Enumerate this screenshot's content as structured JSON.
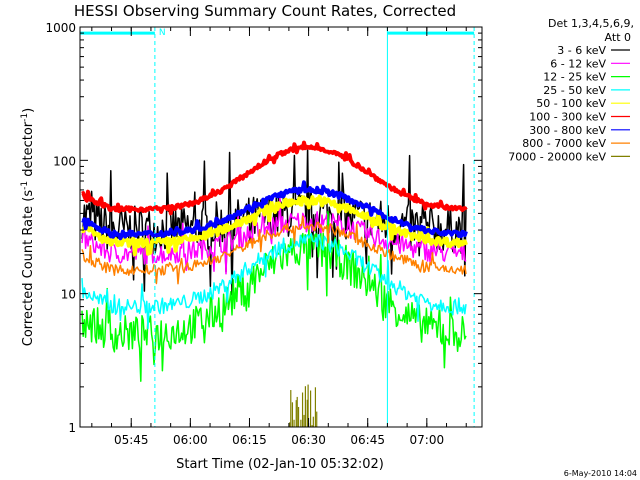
{
  "chart_data": {
    "type": "line",
    "title": "HESSI Observing Summary Count Rates, Corrected",
    "xlabel": "Start Time (02-Jan-10 05:32:02)",
    "ylabel_main": "Corrected Count Rate (s",
    "ylabel_sup1": "-1",
    "ylabel_mid": " detector",
    "ylabel_sup2": "-1",
    "ylabel_end": ")",
    "yscale": "log",
    "ylim": [
      1,
      1000
    ],
    "xlim": [
      "05:32",
      "07:14"
    ],
    "xticks": [
      "05:45",
      "06:00",
      "06:15",
      "06:30",
      "06:45",
      "07:00"
    ],
    "yticks": [
      "1",
      "10",
      "100",
      "1000"
    ],
    "legend_header": [
      "Det 1,3,4,5,6,9,",
      "Att 0"
    ],
    "legend_position": "right",
    "footer_date": "6-May-2010 14:04",
    "night_intervals": [
      {
        "start": "05:32",
        "end": "05:51",
        "flag": "N"
      },
      {
        "start": "06:50",
        "end": "07:12",
        "flag": ""
      }
    ],
    "attenuator_level": 900,
    "series": [
      {
        "name": "3 - 6 keV",
        "color": "#000000",
        "minimum": 30,
        "peak": 40,
        "noise": 0.18
      },
      {
        "name": "6 - 12 keV",
        "color": "#ff00ff",
        "minimum": 20,
        "peak": 35,
        "noise": 0.08
      },
      {
        "name": "12 - 25 keV",
        "color": "#00ff00",
        "minimum": 5,
        "peak": 22,
        "noise": 0.14
      },
      {
        "name": "25 - 50 keV",
        "color": "#00ffff",
        "minimum": 8,
        "peak": 25,
        "noise": 0.06
      },
      {
        "name": "50 - 100 keV",
        "color": "#ffff00",
        "minimum": 24,
        "peak": 50,
        "noise": 0.03
      },
      {
        "name": "100 - 300 keV",
        "color": "#ff0000",
        "minimum": 43,
        "peak": 125,
        "noise": 0.015
      },
      {
        "name": "300 - 800 keV",
        "color": "#0000ff",
        "minimum": 28,
        "peak": 60,
        "noise": 0.02
      },
      {
        "name": "800 - 7000 keV",
        "color": "#ff8000",
        "minimum": 15,
        "peak": 32,
        "noise": 0.04
      },
      {
        "name": "7000 - 20000 keV",
        "color": "#808000",
        "minimum": 1,
        "peak": 2,
        "noise": 0
      }
    ]
  }
}
